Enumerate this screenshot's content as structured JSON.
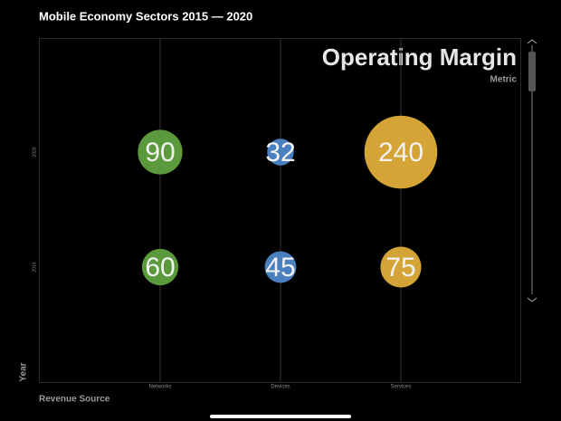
{
  "chart_data": {
    "type": "bubble",
    "title": "Mobile Economy Sectors 2015 — 2020",
    "heading": "Operating Margin",
    "subheading": "Metric",
    "x_label": "Revenue Source",
    "y_label": "Year",
    "categories": [
      "Networks",
      "Devices",
      "Services"
    ],
    "colors": [
      "#5b9a3c",
      "#4a7fc0",
      "#d4a437"
    ],
    "series": [
      {
        "name": "2020",
        "values": [
          90,
          32,
          240
        ]
      },
      {
        "name": "2015",
        "values": [
          60,
          45,
          75
        ]
      }
    ]
  }
}
